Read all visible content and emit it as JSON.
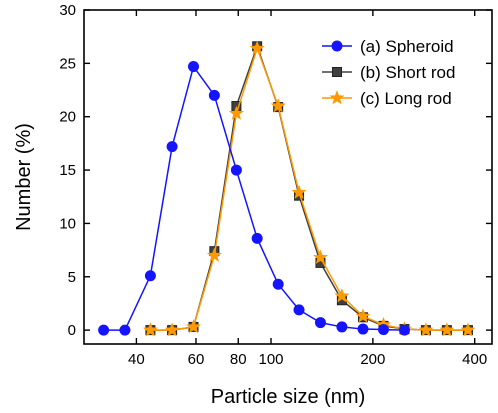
{
  "chart_data": {
    "type": "line",
    "xlabel": "Particle size  (nm)",
    "ylabel": "Number  (%)",
    "x_scale": "log",
    "xlim": [
      28,
      450
    ],
    "ylim": [
      -1.3,
      30
    ],
    "x_ticks": [
      40,
      60,
      80,
      100,
      200,
      400
    ],
    "x_tick_labels": [
      "40",
      "60",
      "80",
      "100",
      "200",
      "400"
    ],
    "y_ticks": [
      0,
      5,
      10,
      15,
      20,
      25,
      30
    ],
    "y_tick_labels": [
      "0",
      "5",
      "10",
      "15",
      "20",
      "25",
      "30"
    ],
    "legend_position": "top-right",
    "grid": false,
    "series": [
      {
        "name": "(a) Spheroid",
        "color": "#1414ff",
        "marker": "circle",
        "x": [
          32,
          37,
          44,
          51,
          59,
          68,
          79,
          91,
          105,
          121,
          140,
          162,
          187,
          215,
          248
        ],
        "y": [
          0.0,
          0.0,
          5.1,
          17.2,
          24.7,
          22.0,
          15.0,
          8.6,
          4.3,
          1.9,
          0.7,
          0.3,
          0.1,
          0.05,
          0.0
        ]
      },
      {
        "name": "(b) Short rod",
        "color": "#404040",
        "marker": "square",
        "x": [
          44,
          51,
          59,
          68,
          79,
          91,
          105,
          121,
          140,
          162,
          187,
          215,
          248,
          287,
          331,
          382
        ],
        "y": [
          0.0,
          0.0,
          0.3,
          7.4,
          21.0,
          26.6,
          20.9,
          12.6,
          6.3,
          2.8,
          1.2,
          0.4,
          0.1,
          0.0,
          0.0,
          0.0
        ]
      },
      {
        "name": "(c) Long rod",
        "color": "#ff9900",
        "marker": "star",
        "x": [
          44,
          51,
          59,
          68,
          79,
          91,
          105,
          121,
          140,
          162,
          187,
          215,
          248,
          287,
          331,
          382
        ],
        "y": [
          0.0,
          0.0,
          0.3,
          7.0,
          20.3,
          26.4,
          21.0,
          12.9,
          6.8,
          3.2,
          1.3,
          0.5,
          0.1,
          0.0,
          0.0,
          0.0
        ]
      }
    ]
  }
}
